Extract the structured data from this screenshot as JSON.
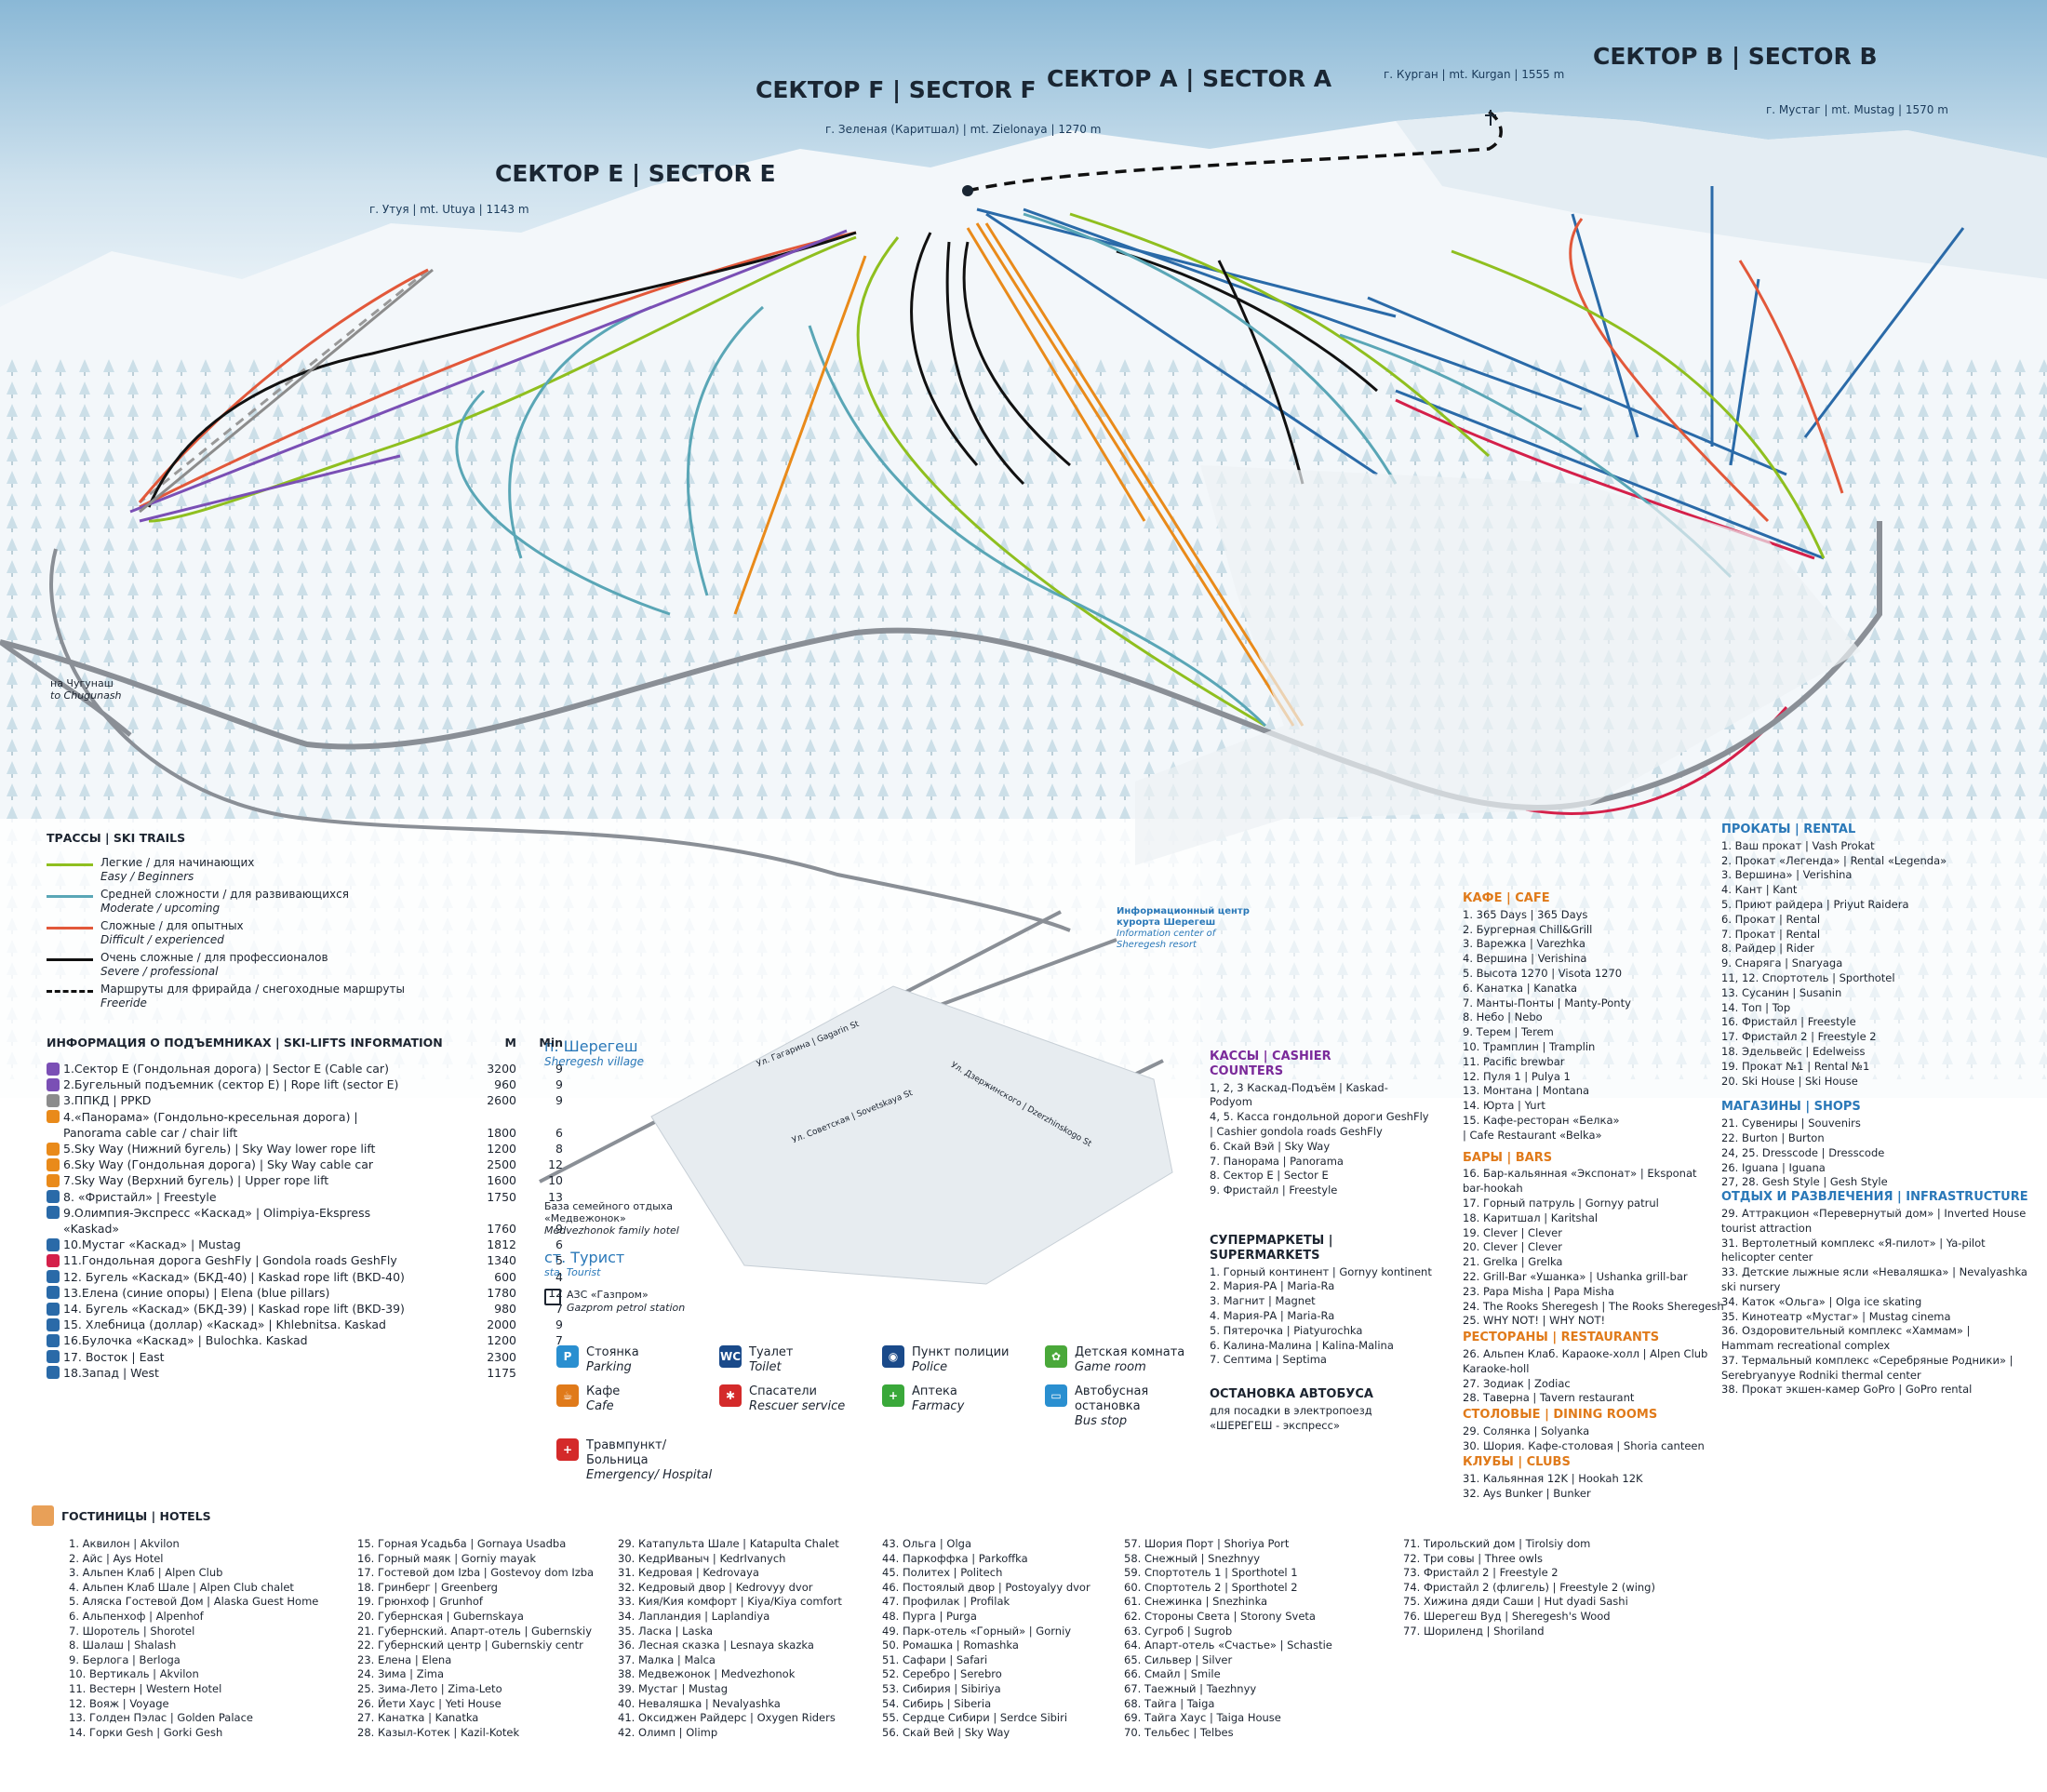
{
  "sectors": {
    "f": "СЕКТОР F | SECTOR F",
    "a": "СЕКТОР A | SECTOR A",
    "b": "СЕКТОР B | SECTOR B",
    "e": "СЕКТОР E | SECTOR E"
  },
  "peaks": {
    "kurgan": "г. Курган | mt. Kurgan | 1555 m",
    "zelenaya": "г. Зеленая (Каритшал) | mt. Zielonaya | 1270 m",
    "mustag": "г. Мустаг | mt. Mustag | 1570 m",
    "utuya": "г. Утуя | mt. Utuya | 1143 m"
  },
  "map_labels": {
    "chugunash": "на Чугунаш",
    "chugunash_en": "to Chugunash",
    "village": "п. Шерегеш",
    "village_en": "Sheregesh village",
    "info_center": "Информационный центр курорта Шерегеш",
    "info_center_en": "Information center of Sheregesh resort",
    "family_hotel": "База семейного отдыха «Медвежонок»",
    "family_hotel_en": "Medvezhonok family hotel",
    "station": "ст. Турист",
    "station_en": "sta. Tourist",
    "petrol": "АЗС «Газпром»",
    "petrol_en": "Gazprom petrol station",
    "street_gagarina": "Ул. Гагарина | Gagarin St",
    "street_sovetskaya": "Ул. Советская | Sovetskaya St",
    "street_dzerzhinskogo": "Ул. Дзержинского | Dzerzhinskogo St"
  },
  "trails": {
    "title": "ТРАССЫ | SKI TRAILS",
    "items": [
      {
        "color": "#8fbf1f",
        "dashed": false,
        "text": "Легкие / для начинающих",
        "text2": "Easy / Beginners"
      },
      {
        "color": "#5aa6b6",
        "dashed": false,
        "text": "Средней сложности / для развивающихся",
        "text2": "Moderate / upcoming"
      },
      {
        "color": "#e2583a",
        "dashed": false,
        "text": "Сложные / для опытных",
        "text2": "Difficult / experienced"
      },
      {
        "color": "#111111",
        "dashed": false,
        "text": "Очень сложные / для профессионалов",
        "text2": "Severe / professional"
      },
      {
        "color": "#111111",
        "dashed": true,
        "text": "Маршруты для фрирайда / снегоходные маршруты",
        "text2": "Freeride"
      }
    ]
  },
  "lifts": {
    "title": "ИНФОРМАЦИЯ О ПОДЪЕМНИКАХ | SKI-LIFTS INFORMATION",
    "col_m": "M",
    "col_min": "Min",
    "rows": [
      {
        "color": "#7a4fb5",
        "name": "1.Сектор Е (Гондольная дорога) | Sector E (Cable car)",
        "m": "3200",
        "min": "9"
      },
      {
        "color": "#7a4fb5",
        "name": "2.Бугельный подъемник (сектор Е) | Rope lift (sector E)",
        "m": "960",
        "min": "9"
      },
      {
        "color": "#8c8c8c",
        "name": "3.ППКД | PPKD",
        "m": "2600",
        "min": "9"
      },
      {
        "color": "#e98a1a",
        "name": "4.«Панорама» (Гондольно-кресельная дорога) |",
        "m": "",
        "min": ""
      },
      {
        "color": "",
        "name": "Panorama cable car / chair lift",
        "m": "1800",
        "min": "6"
      },
      {
        "color": "#e98a1a",
        "name": "5.Sky Way (Нижний бугель) | Sky Way lower rope lift",
        "m": "1200",
        "min": "8"
      },
      {
        "color": "#e98a1a",
        "name": "6.Sky Way (Гондольная дорога) | Sky Way cable car",
        "m": "2500",
        "min": "12"
      },
      {
        "color": "#e98a1a",
        "name": "7.Sky Way (Верхний бугель) | Upper rope lift",
        "m": "1600",
        "min": "10"
      },
      {
        "color": "#2a6aa8",
        "name": "8. «Фристайл» | Freestyle",
        "m": "1750",
        "min": "13"
      },
      {
        "color": "#2a6aa8",
        "name": "9.Олимпия-Экспресс «Каскад» | Olimpiya-Ekspress",
        "m": "",
        "min": ""
      },
      {
        "color": "",
        "name": "«Kaskad»",
        "m": "1760",
        "min": "9"
      },
      {
        "color": "#2a6aa8",
        "name": "10.Мустаг «Каскад» | Mustag",
        "m": "1812",
        "min": "6"
      },
      {
        "color": "#d4204a",
        "name": "11.Гондольная дорога GeshFly | Gondola roads GeshFly",
        "m": "1340",
        "min": "5"
      },
      {
        "color": "#2a6aa8",
        "name": "12. Бугель «Каскад» (БКД-40) | Kaskad rope lift (BKD-40)",
        "m": "600",
        "min": "4"
      },
      {
        "color": "#2a6aa8",
        "name": "13.Елена (синие опоры) | Elena (blue pillars)",
        "m": "1780",
        "min": "12"
      },
      {
        "color": "#2a6aa8",
        "name": "14. Бугель «Каскад» (БКД-39) | Kaskad rope lift (BKD-39)",
        "m": "980",
        "min": "7"
      },
      {
        "color": "#2a6aa8",
        "name": "15. Хлебница (доллар) «Каскад» | Khlebnitsa. Kaskad",
        "m": "2000",
        "min": "9"
      },
      {
        "color": "#2a6aa8",
        "name": "16.Булочка «Каскад» | Bulochka. Kaskad",
        "m": "1200",
        "min": "7"
      },
      {
        "color": "#2a6aa8",
        "name": "17. Восток | East",
        "m": "2300",
        "min": ""
      },
      {
        "color": "#2a6aa8",
        "name": "18.Запад | West",
        "m": "1175",
        "min": ""
      }
    ]
  },
  "symbols": [
    {
      "color": "#2a8fd0",
      "glyph": "P",
      "text": "Стоянка",
      "text2": "Parking"
    },
    {
      "color": "#1a4a8a",
      "glyph": "WC",
      "text": "Туалет",
      "text2": "Toilet"
    },
    {
      "color": "#1a4a8a",
      "glyph": "◉",
      "text": "Пункт полиции",
      "text2": "Police"
    },
    {
      "color": "#4aa83a",
      "glyph": "✿",
      "text": "Детская комната",
      "text2": "Game room"
    },
    {
      "color": "#e07a1a",
      "glyph": "☕",
      "text": "Кафе",
      "text2": "Cafe"
    },
    {
      "color": "#d42a2a",
      "glyph": "✱",
      "text": "Спасатели",
      "text2": "Rescuer service"
    },
    {
      "color": "#3aa83a",
      "glyph": "+",
      "text": "Аптека",
      "text2": "Farmacy"
    },
    {
      "color": "#2a8fd0",
      "glyph": "▭",
      "text": "Автобусная остановка",
      "text2": "Bus stop"
    },
    {
      "color": "#d42a2a",
      "glyph": "+",
      "text": "Травмпункт/Больница",
      "text2": "Emergency/ Hospital"
    }
  ],
  "cashier": {
    "title": "КАССЫ | CASHIER COUNTERS",
    "items": [
      "1, 2, 3 Каскад-Подъём | Kaskad-",
      "Podyom",
      "4, 5. Касса гондольной дороги GeshFly",
      "| Cashier gondola roads GeshFly",
      "6. Скай Вэй | Sky Way",
      "7. Панорама | Panorama",
      "8. Сектор Е | Sector E",
      "9. Фристайл | Freestyle"
    ]
  },
  "supermarkets": {
    "title": "СУПЕРМАРКЕТЫ | SUPERMARKETS",
    "items": [
      "1. Горный континент | Gornyy kontinent",
      "2. Мария-РА | Maria-Ra",
      "3. Магнит | Magnet",
      "4. Мария-РА | Maria-Ra",
      "5. Пятерочка | Piatyurochka",
      "6. Калина-Малина | Kalina-Malina",
      "7. Септима | Septima"
    ]
  },
  "bus": {
    "title": "ОСТАНОВКА АВТОБУСА",
    "items": [
      "для посадки в электропоезд",
      "«ШЕРЕГЕШ - экспресс»"
    ]
  },
  "cafe": {
    "title": "КАФЕ | CAFE",
    "items": [
      "1. 365 Days | 365 Days",
      "2. Бургерная Chill&Grill",
      "3. Варежка | Varezhka",
      "4. Вершина | Verishina",
      "5. Высота 1270 | Visota 1270",
      "6. Канатка | Kanatka",
      "7. Манты-Понты | Manty-Ponty",
      "8. Небо | Nebo",
      "9. Терем | Terem",
      "10. Трамплин | Tramplin",
      "11. Pacific brewbar",
      "12. Пуля 1 | Pulya 1",
      "13. Монтана | Montana",
      "14. Юрта | Yurt",
      "15. Кафе-ресторан «Белка»",
      "| Cafe Restaurant «Belka»"
    ]
  },
  "bars": {
    "title": "БАРЫ | BARS",
    "items": [
      "16. Бар-кальянная «Экспонат» | Eksponat",
      "bar-hookah",
      "17. Горный патруль | Gornyy patrul",
      "18. Каритшал | Karitshal",
      "19. Clever | Clever",
      "20. Clever | Clever",
      "21. Grelka | Grelka",
      "22. Grill-Bar «Ушанка» | Ushanka grill-bar",
      "23. Papa Misha | Papa Misha",
      "24. The Rooks Sheregesh | The Rooks Sheregesh",
      "25. WHY NOT! | WHY NOT!"
    ]
  },
  "restaurants": {
    "title": "РЕСТОРАНЫ | RESTAURANTS",
    "items": [
      "26. Альпен Клаб. Караоке-холл | Alpen Club",
      "Karaoke-holl",
      "27. Зодиак | Zodiac",
      "28. Таверна | Tavern restaurant"
    ]
  },
  "canteens": {
    "title": "СТОЛОВЫЕ | DINING ROOMS",
    "items": [
      "29. Солянка | Solyanka",
      "30. Шория. Кафе-столовая | Shoria canteen"
    ]
  },
  "clubs": {
    "title": "КЛУБЫ | CLUBS",
    "items": [
      "31. Кальянная 12K | Hookah 12K",
      "32. Ays Bunker | Bunker"
    ]
  },
  "rental": {
    "title": "ПРОКАТЫ | RENTAL",
    "items": [
      "1. Ваш прокат | Vash Prokat",
      "2. Прокат «Легенда» | Rental «Legenda»",
      "3. Вершина» | Verishina",
      "4. Кант | Kant",
      "5. Приют райдера | Priyut Raidera",
      "6. Прокат | Rental",
      "7. Прокат | Rental",
      "8. Райдер | Rider",
      "9. Снаряга | Snaryaga",
      "11, 12. Спортотель | Sporthotel",
      "13. Сусанин | Susanin",
      "14. Топ | Top",
      "16. Фристайл | Freestyle",
      "17. Фристайл 2 | Freestyle 2",
      "18. Эдельвейс | Edelweiss",
      "19. Прокат №1 | Rental №1",
      "20. Ski House | Ski House"
    ]
  },
  "shops": {
    "title": "МАГАЗИНЫ | SHOPS",
    "items": [
      "21. Сувениры | Souvenirs",
      "22. Burton | Burton",
      "24, 25. Dresscode | Dresscode",
      "26. Iguana | Iguana",
      "27, 28. Gesh Style | Gesh Style"
    ]
  },
  "infra": {
    "title": "ОТДЫХ И РАЗВЛЕЧЕНИЯ | INFRASTRUCTURE",
    "items": [
      "29. Аттракцион «Перевернутый дом» | Inverted House",
      "tourist attraction",
      "31. Вертолетный комплекс «Я-пилот» | Ya-pilot",
      "helicopter center",
      "33. Детские лыжные ясли «Неваляшка» | Nevalyashka",
      "ski nursery",
      "34. Каток «Ольга» | Olga ice skating",
      "35. Кинотеатр «Мустаг» | Mustag cinema",
      "36. Оздоровительный комплекс «Хаммам» |",
      "Hammam recreational complex",
      "37. Термальный комплекс «Серебряные Родники» |",
      "Serebryanyye Rodniki thermal center",
      "38. Прокат экшен-камер GoPro | GoPro rental"
    ]
  },
  "hotels": {
    "title": "ГОСТИНИЦЫ | HOTELS",
    "col1": [
      "1. Аквилон | Akvilon",
      "2. Айс | Ays Hotel",
      "3. Альпен Клаб | Alpen Club",
      "4. Альпен Клаб Шале | Alpen Club chalet",
      "5. Аляска Гостевой Дом | Alaska Guest Home",
      "6. Альпенхоф | Alpenhof",
      "7. Шоротель | Shorotel",
      "8. Шалаш | Shalash",
      "9. Берлога | Berloga",
      "10. Вертикаль | Akvilon",
      "11. Вестерн | Western Hotel",
      "12. Вояж | Voyage",
      "13. Голден Пэлас | Golden Palace",
      "14. Горки Gesh | Gorki Gesh"
    ],
    "col2": [
      "15. Горная Усадьба | Gornaya Usadba",
      "16. Горный маяк | Gorniy mayak",
      "17. Гостевой дом Izba | Gostevoy dom Izba",
      "18. Гринберг | Greenberg",
      "19. Грюнхоф | Grunhof",
      "20. Губернская | Gubernskaya",
      "21. Губернский. Апарт-отель | Gubernskiy",
      "22. Губернский центр | Gubernskiy centr",
      "23. Елена | Elena",
      "24. Зима | Zima",
      "25. Зима-Лето | Zima-Leto",
      "26. Йети Хаус | Yeti House",
      "27. Канатка | Kanatka",
      "28. Казыл-Котек | Kazil-Kotek"
    ],
    "col3": [
      "29. Катапульта Шале | Katapulta Chalet",
      "30. КедрИваныч | KedrIvanych",
      "31. Кедровая | Kedrovaya",
      "32. Кедровый двор | Kedrovyy dvor",
      "33. Кия/Кия комфорт | Kiya/Kiya comfort",
      "34. Лапландия | Laplandiya",
      "35. Ласка | Laska",
      "36. Лесная сказка | Lesnaya skazka",
      "37. Малка | Malca",
      "38. Медвежонок | Medvezhonok",
      "39. Мустаг | Mustag",
      "40. Неваляшка | Nevalyashka",
      "41. Оксиджен Райдерс | Oxygen Riders",
      "42. Олимп | Olimp"
    ],
    "col4": [
      "43. Ольга | Olga",
      "44. Паркоффка | Parkoffka",
      "45. Политех | Politech",
      "46. Постоялый двор | Postoyalyy dvor",
      "47. Профилак | Profilak",
      "48. Пурга | Purga",
      "49. Парк-отель «Горный» | Gorniy",
      "50. Ромашка | Romashka",
      "51. Сафари | Safari",
      "52. Серебро | Serebro",
      "53. Сибирия | Sibiriya",
      "54. Сибирь | Siberia",
      "55. Сердце Сибири | Serdce Sibiri",
      "56. Скай Вей | Sky Way"
    ],
    "col5": [
      "57. Шория Порт | Shoriya Port",
      "58. Снежный | Snezhnyy",
      "59. Спортотель 1 | Sporthotel 1",
      "60. Спортотель 2 | Sporthotel 2",
      "61. Снежинка | Snezhinka",
      "62. Стороны Света | Storony Sveta",
      "63. Сугроб | Sugrob",
      "64. Апарт-отель «Счастье» | Schastie",
      "65. Сильвер | Silver",
      "66. Смайл | Smile",
      "67. Таежный | Taezhnyy",
      "68. Тайга | Taiga",
      "69. Тайга Хаус | Taiga House",
      "70. Тельбес | Telbes"
    ],
    "col6": [
      "71. Тирольский дом | Tirolsiy dom",
      "72. Три совы | Three owls",
      "73. Фристайл 2 | Freestyle 2",
      "74. Фристайл 2 (флигель) | Freestyle 2 (wing)",
      "75. Хижина дяди Саши | Hut dyadi Sashi",
      "76. Шерегеш Вуд | Sheregesh's Wood",
      "77. Шориленд | Shoriland"
    ]
  },
  "colors": {
    "easy": "#8fbf1f",
    "moderate": "#5aa6b6",
    "difficult": "#e2583a",
    "severe": "#111111",
    "lift_e": "#7a4fb5",
    "lift_f": "#e98a1a",
    "lift_a": "#2a6aa8",
    "gondola": "#d4204a",
    "road": "#8a8f96"
  }
}
